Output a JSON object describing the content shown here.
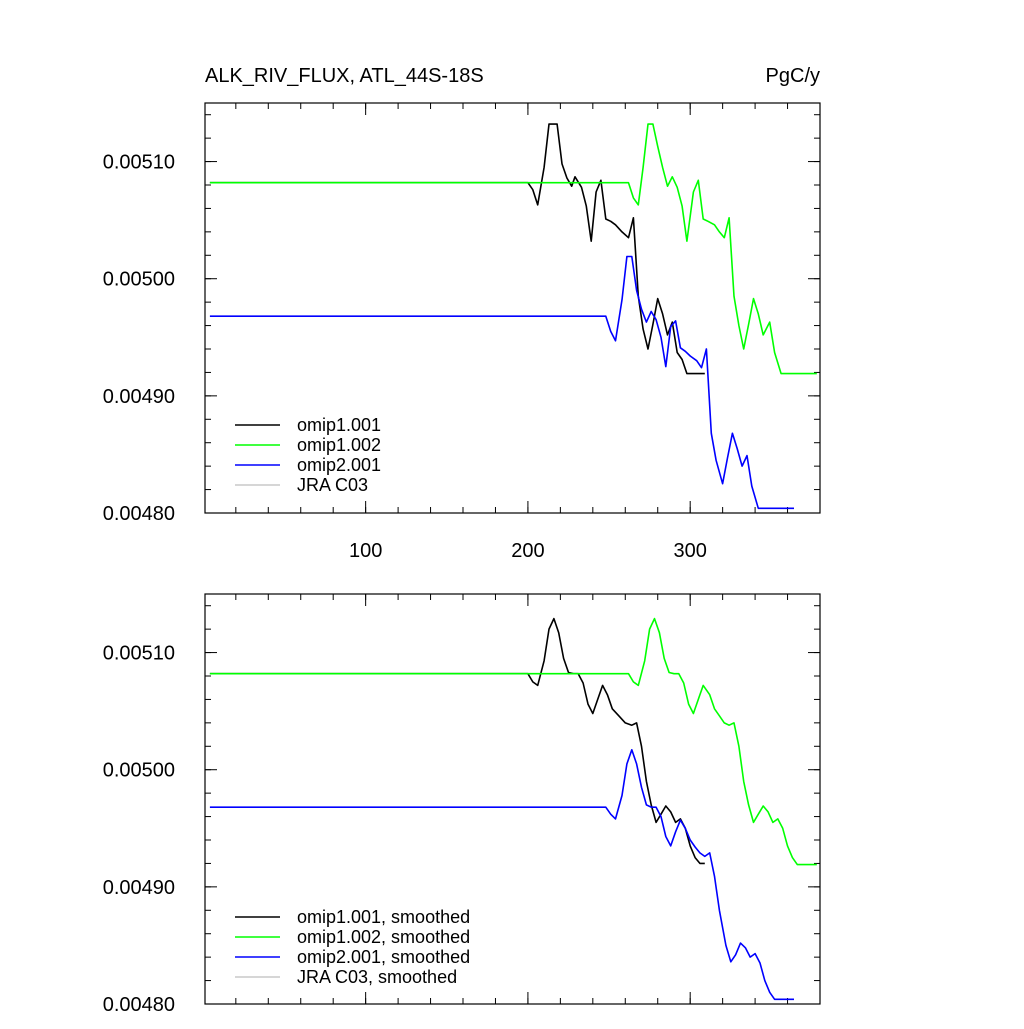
{
  "header": {
    "title": "ALK_RIV_FLUX, ATL_44S-18S",
    "units": "PgC/y"
  },
  "chart_data": [
    {
      "type": "line",
      "title": "ALK_RIV_FLUX, ATL_44S-18S",
      "units": "PgC/y",
      "xlim": [
        1,
        380
      ],
      "ylim": [
        0.0048,
        0.00515
      ],
      "xticks": [
        100,
        200,
        300
      ],
      "yticks": [
        0.0048,
        0.0049,
        0.005,
        0.0051
      ],
      "ytick_labels": [
        "0.00480",
        "0.00490",
        "0.00500",
        "0.00510"
      ],
      "xtick_labels": [
        "100",
        "200",
        "300"
      ],
      "legend_position": "bottom-left",
      "series": [
        {
          "name": "omip1.001",
          "color": "#000000",
          "x": [
            4,
            200,
            203,
            206,
            210,
            213,
            218,
            221,
            224,
            227,
            229,
            233,
            236,
            239,
            242,
            245,
            248,
            251,
            254,
            258,
            262,
            265,
            268,
            271,
            274,
            277,
            280,
            283,
            286,
            289,
            292,
            295,
            298,
            301,
            305,
            309
          ],
          "y": [
            0.005082,
            0.005082,
            0.005076,
            0.005063,
            0.005095,
            0.005132,
            0.005132,
            0.005098,
            0.005086,
            0.005079,
            0.005087,
            0.005078,
            0.005062,
            0.005032,
            0.005074,
            0.005084,
            0.005051,
            0.005049,
            0.005046,
            0.00504,
            0.005035,
            0.005052,
            0.004985,
            0.004957,
            0.00494,
            0.004961,
            0.004983,
            0.00497,
            0.004952,
            0.004963,
            0.004937,
            0.004931,
            0.004919,
            0.004919,
            0.004919,
            0.004919
          ]
        },
        {
          "name": "omip1.002",
          "color": "#00ff00",
          "x": [
            4,
            262,
            265,
            268,
            271,
            274,
            277,
            280,
            283,
            286,
            289,
            292,
            295,
            298,
            302,
            305,
            308,
            311,
            315,
            318,
            321,
            324,
            327,
            330,
            333,
            336,
            339,
            342,
            345,
            349,
            352,
            356,
            360,
            370,
            378
          ],
          "y": [
            0.005082,
            0.005082,
            0.005069,
            0.005063,
            0.005095,
            0.005132,
            0.005132,
            0.005113,
            0.005095,
            0.005079,
            0.005087,
            0.005078,
            0.005062,
            0.005032,
            0.005074,
            0.005084,
            0.005051,
            0.005049,
            0.005046,
            0.00504,
            0.005035,
            0.005052,
            0.004985,
            0.00496,
            0.00494,
            0.004961,
            0.004983,
            0.00497,
            0.004952,
            0.004963,
            0.004937,
            0.004919,
            0.004919,
            0.004919,
            0.004919
          ]
        },
        {
          "name": "omip2.001",
          "color": "#0000ff",
          "x": [
            4,
            248,
            251,
            254,
            258,
            261,
            264,
            267,
            270,
            273,
            276,
            279,
            282,
            285,
            288,
            291,
            294,
            297,
            300,
            304,
            307,
            310,
            313,
            316,
            320,
            323,
            326,
            329,
            332,
            335,
            338,
            342,
            345,
            348,
            352,
            357,
            364
          ],
          "y": [
            0.004968,
            0.004968,
            0.004955,
            0.004947,
            0.004982,
            0.005019,
            0.005019,
            0.00499,
            0.004974,
            0.004963,
            0.004972,
            0.004965,
            0.00495,
            0.004925,
            0.004959,
            0.004964,
            0.004941,
            0.004938,
            0.004934,
            0.00493,
            0.004924,
            0.00494,
            0.004868,
            0.004845,
            0.004825,
            0.004847,
            0.004868,
            0.004855,
            0.00484,
            0.004849,
            0.004823,
            0.004804,
            0.004804,
            0.004804,
            0.004804,
            0.004804,
            0.004804
          ]
        },
        {
          "name": "JRA C03",
          "color": "#c8c8c8",
          "x": [],
          "y": []
        }
      ]
    },
    {
      "type": "line",
      "xlim": [
        1,
        380
      ],
      "ylim": [
        0.0048,
        0.00515
      ],
      "xticks": [
        100,
        200,
        300
      ],
      "yticks": [
        0.0048,
        0.0049,
        0.005,
        0.0051
      ],
      "ytick_labels": [
        "0.00480",
        "0.00490",
        "0.00500",
        "0.00510"
      ],
      "legend_position": "bottom-left",
      "series": [
        {
          "name": "omip1.001, smoothed",
          "color": "#000000",
          "x": [
            4,
            200,
            203,
            206,
            210,
            213,
            216,
            219,
            222,
            225,
            228,
            231,
            234,
            237,
            240,
            243,
            246,
            249,
            252,
            256,
            260,
            264,
            267,
            270,
            273,
            276,
            279,
            282,
            285,
            288,
            291,
            294,
            297,
            300,
            303,
            306,
            309
          ],
          "y": [
            0.005082,
            0.005082,
            0.005075,
            0.005072,
            0.005093,
            0.00512,
            0.005129,
            0.005117,
            0.005095,
            0.005083,
            0.005082,
            0.005082,
            0.005074,
            0.005056,
            0.005048,
            0.00506,
            0.005072,
            0.005064,
            0.005052,
            0.005046,
            0.00504,
            0.005038,
            0.00504,
            0.00502,
            0.00499,
            0.00497,
            0.004955,
            0.004962,
            0.004969,
            0.004964,
            0.004955,
            0.004958,
            0.00495,
            0.004935,
            0.004925,
            0.00492,
            0.00492
          ]
        },
        {
          "name": "omip1.002, smoothed",
          "color": "#00ff00",
          "x": [
            4,
            262,
            265,
            268,
            272,
            275,
            278,
            281,
            284,
            287,
            290,
            293,
            296,
            299,
            302,
            305,
            308,
            312,
            315,
            318,
            321,
            324,
            327,
            330,
            333,
            336,
            339,
            342,
            345,
            348,
            351,
            354,
            357,
            360,
            363,
            366,
            369,
            372,
            375,
            378
          ],
          "y": [
            0.005082,
            0.005082,
            0.005075,
            0.005072,
            0.005093,
            0.00512,
            0.005129,
            0.005117,
            0.005095,
            0.005083,
            0.005082,
            0.005082,
            0.005074,
            0.005056,
            0.005048,
            0.00506,
            0.005072,
            0.005064,
            0.005052,
            0.005046,
            0.00504,
            0.005038,
            0.00504,
            0.00502,
            0.00499,
            0.00497,
            0.004955,
            0.004962,
            0.004969,
            0.004964,
            0.004955,
            0.004958,
            0.00495,
            0.004935,
            0.004925,
            0.004919,
            0.004919,
            0.004919,
            0.004919,
            0.004919
          ]
        },
        {
          "name": "omip2.001, smoothed",
          "color": "#0000ff",
          "x": [
            4,
            248,
            251,
            254,
            258,
            261,
            264,
            267,
            270,
            273,
            276,
            279,
            282,
            285,
            288,
            291,
            294,
            297,
            300,
            303,
            306,
            309,
            312,
            315,
            318,
            322,
            325,
            328,
            331,
            334,
            337,
            340,
            343,
            346,
            349,
            352,
            355,
            358,
            361,
            364
          ],
          "y": [
            0.004968,
            0.004968,
            0.004962,
            0.004958,
            0.004978,
            0.005005,
            0.005017,
            0.005005,
            0.004985,
            0.00497,
            0.004968,
            0.004968,
            0.00496,
            0.004943,
            0.004935,
            0.004947,
            0.004957,
            0.00495,
            0.00494,
            0.004934,
            0.004929,
            0.004926,
            0.004929,
            0.004909,
            0.00488,
            0.00485,
            0.004836,
            0.004842,
            0.004852,
            0.004848,
            0.00484,
            0.004843,
            0.004835,
            0.00482,
            0.00481,
            0.004804,
            0.004804,
            0.004804,
            0.004804,
            0.004804
          ]
        },
        {
          "name": "JRA C03, smoothed",
          "color": "#c8c8c8",
          "x": [],
          "y": []
        }
      ]
    }
  ]
}
